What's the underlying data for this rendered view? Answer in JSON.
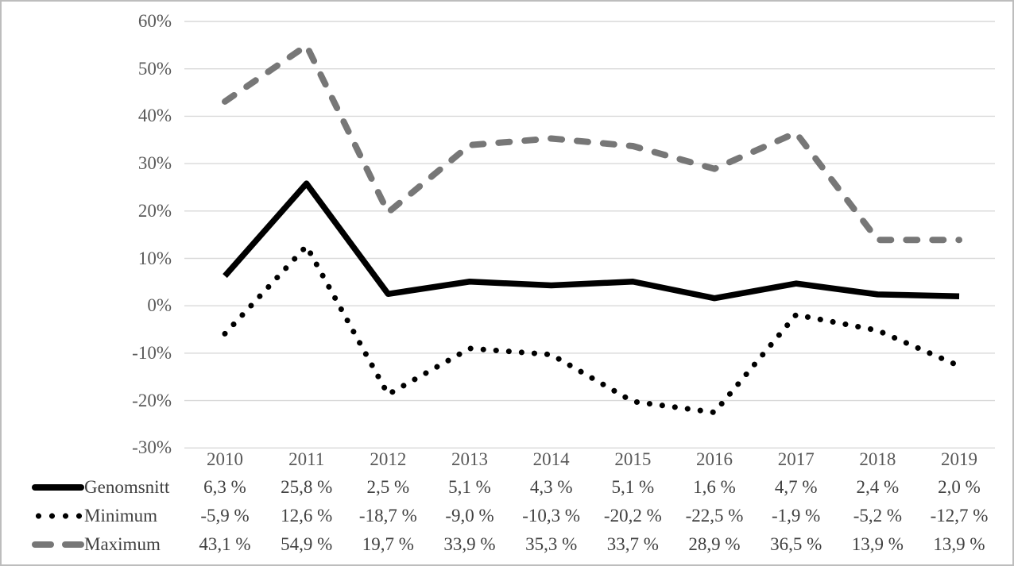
{
  "figure": {
    "background": "#ffffff",
    "border_color": "#bdbdbd",
    "gridline_color": "#d9d9d9",
    "axis_text_color": "#595959",
    "table_text_color": "#404040"
  },
  "chart_data": {
    "type": "line",
    "title": "",
    "xlabel": "",
    "ylabel": "",
    "grid": true,
    "legend_position": "bottom-left-table",
    "categories": [
      "2010",
      "2011",
      "2012",
      "2013",
      "2014",
      "2015",
      "2016",
      "2017",
      "2018",
      "2019"
    ],
    "y_axis": {
      "min": -30,
      "max": 60,
      "step": 10,
      "tick_labels": [
        "60%",
        "50%",
        "40%",
        "30%",
        "20%",
        "10%",
        "0%",
        "-10%",
        "-20%",
        "-30%"
      ]
    },
    "series": [
      {
        "name": "Genomsnitt",
        "line_style": "solid",
        "color": "#000000",
        "values": [
          6.3,
          25.8,
          2.5,
          5.1,
          4.3,
          5.1,
          1.6,
          4.7,
          2.4,
          2.0
        ],
        "display_values": [
          "6,3 %",
          "25,8 %",
          "2,5 %",
          "5,1 %",
          "4,3 %",
          "5,1 %",
          "1,6 %",
          "4,7 %",
          "2,4 %",
          "2,0 %"
        ]
      },
      {
        "name": "Minimum",
        "line_style": "dotted",
        "color": "#000000",
        "values": [
          -5.9,
          12.6,
          -18.7,
          -9.0,
          -10.3,
          -20.2,
          -22.5,
          -1.9,
          -5.2,
          -12.7
        ],
        "display_values": [
          "-5,9 %",
          "12,6 %",
          "-18,7 %",
          "-9,0 %",
          "-10,3 %",
          "-20,2 %",
          "-22,5 %",
          "-1,9 %",
          "-5,2 %",
          "-12,7 %"
        ]
      },
      {
        "name": "Maximum",
        "line_style": "dashed",
        "color": "#777777",
        "values": [
          43.1,
          54.9,
          19.7,
          33.9,
          35.3,
          33.7,
          28.9,
          36.5,
          13.9,
          13.9
        ],
        "display_values": [
          "43,1 %",
          "54,9 %",
          "19,7 %",
          "33,9 %",
          "35,3 %",
          "33,7 %",
          "28,9 %",
          "36,5 %",
          "13,9 %",
          "13,9 %"
        ]
      }
    ]
  }
}
